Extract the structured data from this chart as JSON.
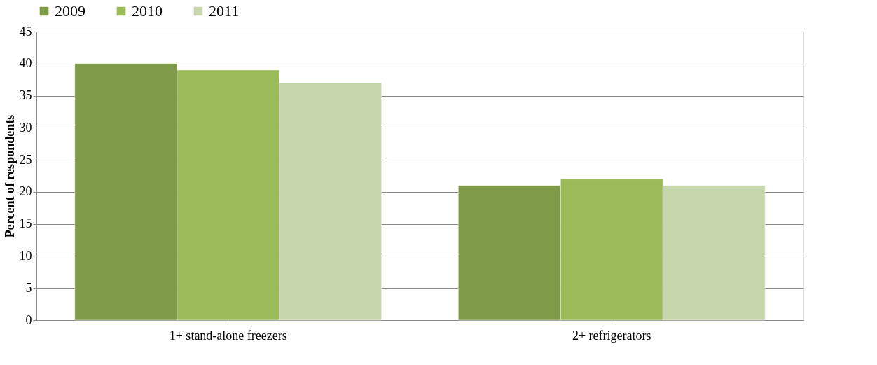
{
  "chart_data": {
    "type": "bar",
    "categories": [
      "1+ stand-alone freezers",
      "2+ refrigerators"
    ],
    "series": [
      {
        "name": "2009",
        "color": "#7f9a48",
        "values": [
          40,
          21
        ]
      },
      {
        "name": "2010",
        "color": "#9bbb59",
        "values": [
          39,
          22
        ]
      },
      {
        "name": "2011",
        "color": "#c6d6ac",
        "values": [
          37,
          21
        ]
      }
    ],
    "ylabel": "Percent of respondents",
    "ylim": [
      0,
      45
    ],
    "yticks": [
      0,
      5,
      10,
      15,
      20,
      25,
      30,
      35,
      40,
      45
    ],
    "grid": "y",
    "legend": "top"
  }
}
